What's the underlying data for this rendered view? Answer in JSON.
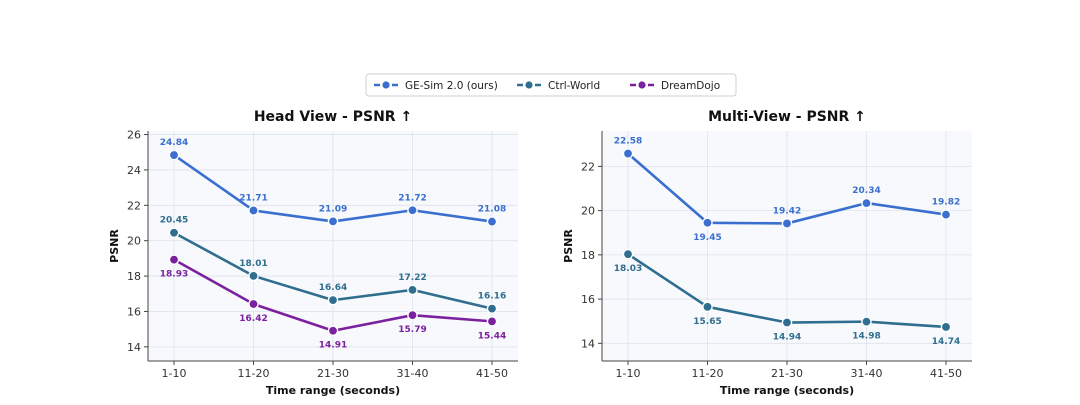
{
  "legend": {
    "placement": "top-center",
    "entries": [
      {
        "name": "GE-Sim 2.0 (ours)",
        "color": "#3a6fcf"
      },
      {
        "name": "Ctrl-World",
        "color": "#2f6e8e"
      },
      {
        "name": "DreamDojo",
        "color": "#7b219f"
      }
    ]
  },
  "chart_data": [
    {
      "type": "line",
      "title": "Head View - PSNR ↑",
      "xlabel": "Time range (seconds)",
      "ylabel": "PSNR",
      "categories": [
        "1-10",
        "11-20",
        "21-30",
        "31-40",
        "41-50"
      ],
      "ylim": [
        13.2,
        26.2
      ],
      "yticks": [
        14,
        16,
        18,
        20,
        22,
        24,
        26
      ],
      "grid": true,
      "series": [
        {
          "name": "GE-Sim 2.0 (ours)",
          "color": "#3a6fcf",
          "values": [
            24.84,
            21.71,
            21.09,
            21.72,
            21.08
          ],
          "labels": [
            "24.84",
            "21.71",
            "21.09",
            "21.72",
            "21.08"
          ]
        },
        {
          "name": "Ctrl-World",
          "color": "#2f6e8e",
          "values": [
            20.45,
            18.01,
            16.64,
            17.22,
            16.16
          ],
          "labels": [
            "20.45",
            "18.01",
            "16.64",
            "17.22",
            "16.16"
          ]
        },
        {
          "name": "DreamDojo",
          "color": "#7b219f",
          "values": [
            18.93,
            16.42,
            14.91,
            15.79,
            15.44
          ],
          "labels": [
            "18.93",
            "16.42",
            "14.91",
            "15.79",
            "15.44"
          ]
        }
      ]
    },
    {
      "type": "line",
      "title": "Multi-View - PSNR ↑",
      "xlabel": "Time range (seconds)",
      "ylabel": "PSNR",
      "categories": [
        "1-10",
        "11-20",
        "21-30",
        "31-40",
        "41-50"
      ],
      "ylim": [
        13.2,
        23.6
      ],
      "yticks": [
        14,
        16,
        18,
        20,
        22
      ],
      "grid": true,
      "series": [
        {
          "name": "GE-Sim 2.0 (ours)",
          "color": "#3a6fcf",
          "values": [
            22.58,
            19.45,
            19.42,
            20.34,
            19.82
          ],
          "labels": [
            "22.58",
            "19.45",
            "19.42",
            "20.34",
            "19.82"
          ]
        },
        {
          "name": "Ctrl-World",
          "color": "#2f6e8e",
          "values": [
            18.03,
            15.65,
            14.94,
            14.98,
            14.74
          ],
          "labels": [
            "18.03",
            "15.65",
            "14.94",
            "14.98",
            "14.74"
          ]
        }
      ]
    }
  ]
}
